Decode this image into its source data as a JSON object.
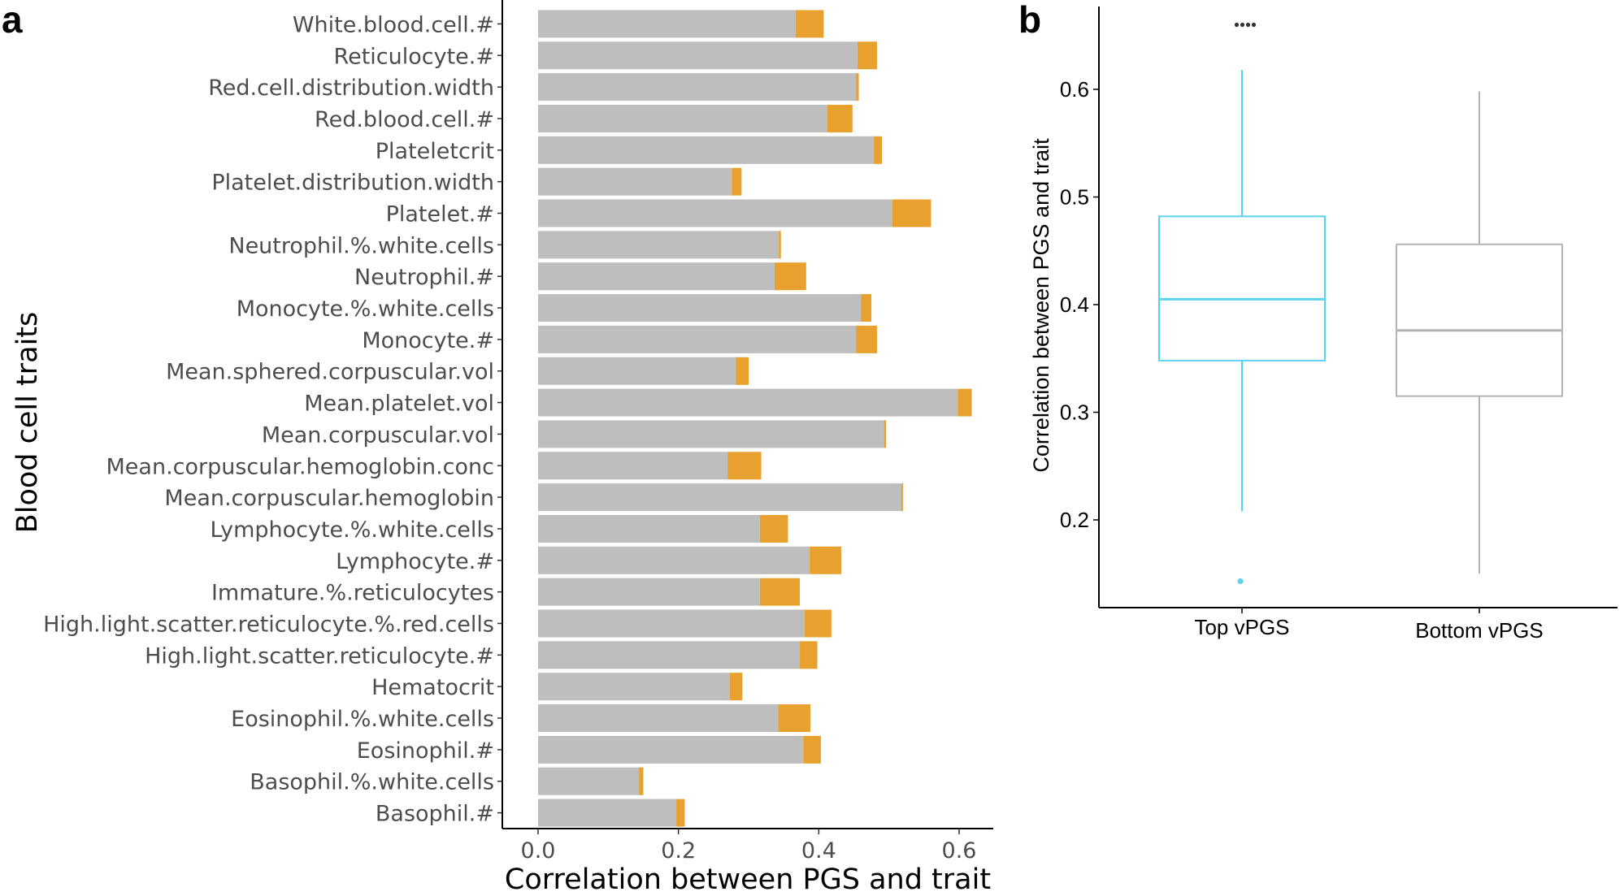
{
  "panel_labels": {
    "a": "a",
    "b": "b"
  },
  "chart_data": [
    {
      "type": "bar",
      "orientation": "horizontal",
      "stacked": true,
      "xlabel": "Correlation between PGS and trait",
      "ylabel": "Blood cell traits",
      "xlim": [
        -0.05,
        0.65
      ],
      "xticks": [
        0.0,
        0.2,
        0.4,
        0.6
      ],
      "xtick_labels": [
        "0.0",
        "0.2",
        "0.4",
        "0.6"
      ],
      "grid": false,
      "legend": "none",
      "colors": {
        "base": "#bebebe",
        "increment": "#e8a12e"
      },
      "categories": [
        "White.blood.cell.#",
        "Reticulocyte.#",
        "Red.cell.distribution.width",
        "Red.blood.cell.#",
        "Plateletcrit",
        "Platelet.distribution.width",
        "Platelet.#",
        "Neutrophil.%.white.cells",
        "Neutrophil.#",
        "Monocyte.%.white.cells",
        "Monocyte.#",
        "Mean.sphered.corpuscular.vol",
        "Mean.platelet.vol",
        "Mean.corpuscular.vol",
        "Mean.corpuscular.hemoglobin.conc",
        "Mean.corpuscular.hemoglobin",
        "Lymphocyte.%.white.cells",
        "Lymphocyte.#",
        "Immature.%.reticulocytes",
        "High.light.scatter.reticulocyte.%.red.cells",
        "High.light.scatter.reticulocyte.#",
        "Hematocrit",
        "Eosinophil.%.white.cells",
        "Eosinophil.#",
        "Basophil.%.white.cells",
        "Basophil.#"
      ],
      "series": [
        {
          "values": [
            0.367,
            0.455,
            0.453,
            0.412,
            0.478,
            0.276,
            0.505,
            0.343,
            0.337,
            0.46,
            0.453,
            0.3,
            0.598,
            0.493,
            0.27,
            0.52,
            0.316,
            0.387,
            0.316,
            0.38,
            0.373,
            0.273,
            0.342,
            0.378,
            0.15,
            0.197
          ]
        },
        {
          "values": [
            0.04,
            0.028,
            0.004,
            0.036,
            0.012,
            0.014,
            0.055,
            0.003,
            0.045,
            0.015,
            0.03,
            -0.018,
            0.02,
            0.003,
            0.048,
            -0.002,
            0.04,
            0.045,
            0.057,
            0.038,
            0.025,
            0.018,
            0.046,
            0.025,
            -0.006,
            0.012
          ]
        }
      ]
    },
    {
      "type": "box",
      "xlabel": "",
      "ylabel": "Correlation between PGS and trait",
      "ylim": [
        0.118,
        0.675
      ],
      "yticks": [
        0.2,
        0.3,
        0.4,
        0.5,
        0.6
      ],
      "ytick_labels": [
        "0.2",
        "0.3",
        "0.4",
        "0.5",
        "0.6"
      ],
      "grid": false,
      "legend": "none",
      "categories": [
        "Top vPGS",
        "Bottom vPGS"
      ],
      "boxes": [
        {
          "name": "Top vPGS",
          "color": "#5bd3ec",
          "whisker_low": 0.208,
          "q1": 0.348,
          "median": 0.405,
          "q3": 0.482,
          "whisker_high": 0.618,
          "outliers": [
            0.143,
            0.66,
            0.66,
            0.66,
            0.66
          ]
        },
        {
          "name": "Bottom vPGS",
          "color": "#b3b3b3",
          "whisker_low": 0.15,
          "q1": 0.315,
          "median": 0.376,
          "q3": 0.456,
          "whisker_high": 0.598,
          "outliers": []
        }
      ]
    }
  ]
}
